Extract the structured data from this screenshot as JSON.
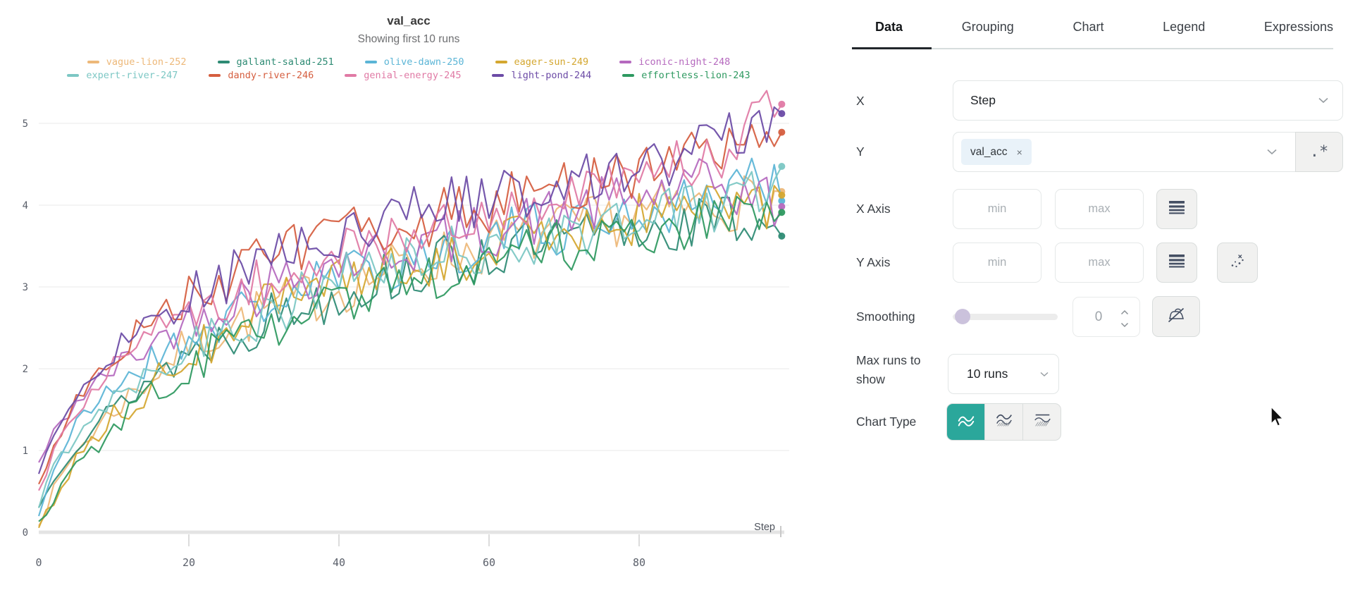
{
  "chart": {
    "title": "val_acc",
    "subtitle": "Showing first 10 runs"
  },
  "chart_data": {
    "type": "line",
    "title": "val_acc",
    "subtitle": "Showing first 10 runs",
    "xlabel": "Step",
    "x_ticks": [
      0,
      20,
      40,
      60,
      80
    ],
    "y_ticks": [
      0,
      1,
      2,
      3,
      4,
      5
    ],
    "xlim": [
      0,
      100
    ],
    "ylim": [
      0,
      5.4
    ],
    "grid": "horizontal",
    "legend_position": "top",
    "anchor_steps": [
      0,
      2,
      5,
      10,
      15,
      20,
      30,
      40,
      50,
      60,
      70,
      80,
      90,
      99
    ],
    "noise": {
      "base": 0.07,
      "full": 0.28,
      "ramp_steps": 30
    },
    "series": [
      {
        "name": "vague-lion-252",
        "color": "#EDB879",
        "seed": 7,
        "anchors": [
          0.1,
          0.5,
          1.0,
          1.5,
          1.9,
          2.3,
          2.7,
          3.0,
          3.3,
          3.5,
          3.7,
          3.9,
          4.0,
          4.1
        ]
      },
      {
        "name": "gallant-salad-251",
        "color": "#2E8B74",
        "seed": 13,
        "anchors": [
          0.3,
          0.7,
          1.1,
          1.5,
          1.9,
          2.2,
          2.6,
          2.95,
          3.2,
          3.4,
          3.55,
          3.7,
          3.8,
          3.85
        ]
      },
      {
        "name": "olive-dawn-250",
        "color": "#5BB5D6",
        "seed": 21,
        "anchors": [
          0.2,
          0.8,
          1.3,
          1.8,
          2.1,
          2.4,
          2.8,
          3.1,
          3.35,
          3.6,
          3.75,
          3.9,
          4.1,
          4.4
        ]
      },
      {
        "name": "eager-sun-249",
        "color": "#D4A730",
        "seed": 34,
        "anchors": [
          0.05,
          0.4,
          0.9,
          1.4,
          1.8,
          2.2,
          2.7,
          3.0,
          3.25,
          3.5,
          3.7,
          3.85,
          3.95,
          4.05
        ]
      },
      {
        "name": "iconic-night-248",
        "color": "#B569BE",
        "seed": 42,
        "anchors": [
          0.85,
          1.2,
          1.6,
          2.0,
          2.3,
          2.6,
          3.0,
          3.3,
          3.5,
          3.7,
          3.9,
          4.1,
          4.25,
          4.0
        ]
      },
      {
        "name": "expert-river-247",
        "color": "#7CC7C4",
        "seed": 55,
        "anchors": [
          0.3,
          0.8,
          1.2,
          1.7,
          2.0,
          2.3,
          2.7,
          3.05,
          3.3,
          3.5,
          3.65,
          3.85,
          4.0,
          4.3
        ]
      },
      {
        "name": "dandy-river-246",
        "color": "#D55E3F",
        "seed": 63,
        "anchors": [
          0.6,
          1.1,
          1.6,
          2.2,
          2.6,
          2.9,
          3.3,
          3.6,
          3.8,
          4.0,
          4.2,
          4.4,
          4.6,
          4.95
        ]
      },
      {
        "name": "genial-energy-245",
        "color": "#E07AA5",
        "seed": 71,
        "anchors": [
          0.5,
          1.0,
          1.5,
          2.0,
          2.4,
          2.7,
          3.1,
          3.4,
          3.65,
          3.9,
          4.1,
          4.3,
          4.6,
          5.3
        ]
      },
      {
        "name": "light-pond-244",
        "color": "#6C4BA6",
        "seed": 88,
        "anchors": [
          0.7,
          1.2,
          1.7,
          2.2,
          2.6,
          2.9,
          3.3,
          3.6,
          3.9,
          4.1,
          4.3,
          4.5,
          4.7,
          5.2
        ]
      },
      {
        "name": "effortless-lion-243",
        "color": "#2E9960",
        "seed": 96,
        "anchors": [
          0.15,
          0.4,
          0.8,
          1.3,
          1.7,
          2.0,
          2.5,
          2.85,
          3.1,
          3.3,
          3.5,
          3.65,
          3.8,
          3.9
        ]
      }
    ]
  },
  "panel": {
    "tabs": [
      {
        "label": "Data",
        "active": true
      },
      {
        "label": "Grouping",
        "active": false
      },
      {
        "label": "Chart",
        "active": false
      },
      {
        "label": "Legend",
        "active": false
      },
      {
        "label": "Expressions",
        "active": false
      }
    ],
    "rows": {
      "x": {
        "label": "X",
        "value": "Step"
      },
      "y": {
        "label": "Y",
        "tag": "val_acc",
        "remove_glyph": "×",
        "regex_glyph": ".*"
      },
      "x_axis": {
        "label": "X Axis",
        "min_placeholder": "min",
        "max_placeholder": "max"
      },
      "y_axis": {
        "label": "Y Axis",
        "min_placeholder": "min",
        "max_placeholder": "max"
      },
      "smoothing": {
        "label": "Smoothing",
        "value": "0"
      },
      "max_runs": {
        "label": "Max runs to show",
        "value": "10 runs"
      },
      "chart_type": {
        "label": "Chart Type"
      }
    },
    "colors": {
      "accent_teal": "#2BA79B",
      "tag_bg": "#E9F2F9",
      "active_tab_underline": "#21262B",
      "slider_thumb": "#CBC2DC"
    }
  }
}
